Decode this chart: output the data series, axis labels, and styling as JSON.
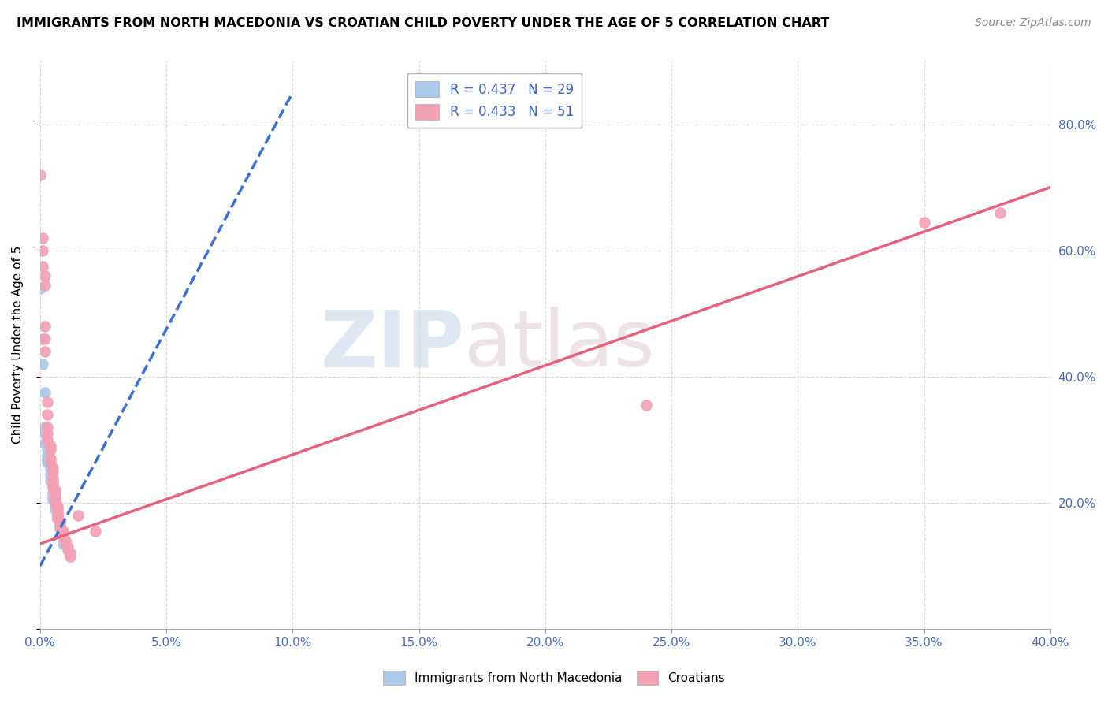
{
  "title": "IMMIGRANTS FROM NORTH MACEDONIA VS CROATIAN CHILD POVERTY UNDER THE AGE OF 5 CORRELATION CHART",
  "source": "Source: ZipAtlas.com",
  "ylabel": "Child Poverty Under the Age of 5",
  "legend_entry1": "R = 0.437   N = 29",
  "legend_entry2": "R = 0.433   N = 51",
  "legend_label1": "Immigrants from North Macedonia",
  "legend_label2": "Croatians",
  "color_blue": "#aac8ea",
  "color_pink": "#f4a0b5",
  "color_blue_line": "#3a6fd8",
  "color_pink_line": "#e8607a",
  "color_blue_text": "#4169c8",
  "scatter_blue": [
    [
      0.0,
      0.54
    ],
    [
      0.001,
      0.46
    ],
    [
      0.001,
      0.42
    ],
    [
      0.002,
      0.375
    ],
    [
      0.002,
      0.32
    ],
    [
      0.002,
      0.31
    ],
    [
      0.002,
      0.295
    ],
    [
      0.003,
      0.285
    ],
    [
      0.003,
      0.275
    ],
    [
      0.003,
      0.27
    ],
    [
      0.003,
      0.265
    ],
    [
      0.004,
      0.26
    ],
    [
      0.004,
      0.255
    ],
    [
      0.004,
      0.245
    ],
    [
      0.004,
      0.235
    ],
    [
      0.005,
      0.225
    ],
    [
      0.005,
      0.215
    ],
    [
      0.005,
      0.21
    ],
    [
      0.005,
      0.205
    ],
    [
      0.006,
      0.2
    ],
    [
      0.006,
      0.195
    ],
    [
      0.006,
      0.19
    ],
    [
      0.007,
      0.185
    ],
    [
      0.007,
      0.18
    ],
    [
      0.007,
      0.175
    ],
    [
      0.008,
      0.17
    ],
    [
      0.008,
      0.16
    ],
    [
      0.009,
      0.145
    ],
    [
      0.009,
      0.135
    ]
  ],
  "scatter_pink": [
    [
      0.0,
      0.72
    ],
    [
      0.001,
      0.62
    ],
    [
      0.001,
      0.6
    ],
    [
      0.001,
      0.575
    ],
    [
      0.002,
      0.56
    ],
    [
      0.002,
      0.545
    ],
    [
      0.002,
      0.48
    ],
    [
      0.002,
      0.46
    ],
    [
      0.002,
      0.44
    ],
    [
      0.003,
      0.36
    ],
    [
      0.003,
      0.34
    ],
    [
      0.003,
      0.32
    ],
    [
      0.003,
      0.31
    ],
    [
      0.003,
      0.3
    ],
    [
      0.004,
      0.29
    ],
    [
      0.004,
      0.285
    ],
    [
      0.004,
      0.27
    ],
    [
      0.004,
      0.265
    ],
    [
      0.005,
      0.255
    ],
    [
      0.005,
      0.25
    ],
    [
      0.005,
      0.24
    ],
    [
      0.005,
      0.235
    ],
    [
      0.005,
      0.23
    ],
    [
      0.005,
      0.225
    ],
    [
      0.006,
      0.22
    ],
    [
      0.006,
      0.215
    ],
    [
      0.006,
      0.21
    ],
    [
      0.006,
      0.205
    ],
    [
      0.006,
      0.2
    ],
    [
      0.007,
      0.195
    ],
    [
      0.007,
      0.19
    ],
    [
      0.007,
      0.185
    ],
    [
      0.007,
      0.18
    ],
    [
      0.007,
      0.175
    ],
    [
      0.008,
      0.17
    ],
    [
      0.008,
      0.165
    ],
    [
      0.008,
      0.16
    ],
    [
      0.009,
      0.155
    ],
    [
      0.009,
      0.15
    ],
    [
      0.009,
      0.145
    ],
    [
      0.01,
      0.14
    ],
    [
      0.01,
      0.135
    ],
    [
      0.011,
      0.13
    ],
    [
      0.011,
      0.125
    ],
    [
      0.012,
      0.12
    ],
    [
      0.012,
      0.115
    ],
    [
      0.015,
      0.18
    ],
    [
      0.022,
      0.155
    ],
    [
      0.35,
      0.645
    ],
    [
      0.38,
      0.66
    ],
    [
      0.24,
      0.355
    ]
  ],
  "xlim": [
    0,
    0.4
  ],
  "ylim": [
    0,
    0.9
  ],
  "xgrid_ticks": [
    0.0,
    0.05,
    0.1,
    0.15,
    0.2,
    0.25,
    0.3,
    0.35,
    0.4
  ],
  "ygrid_ticks": [
    0.0,
    0.2,
    0.4,
    0.6,
    0.8
  ],
  "blue_line_x": [
    0.0,
    0.1
  ],
  "blue_line_y": [
    0.1,
    0.85
  ],
  "pink_line_x": [
    0.0,
    0.4
  ],
  "pink_line_y": [
    0.135,
    0.7
  ]
}
